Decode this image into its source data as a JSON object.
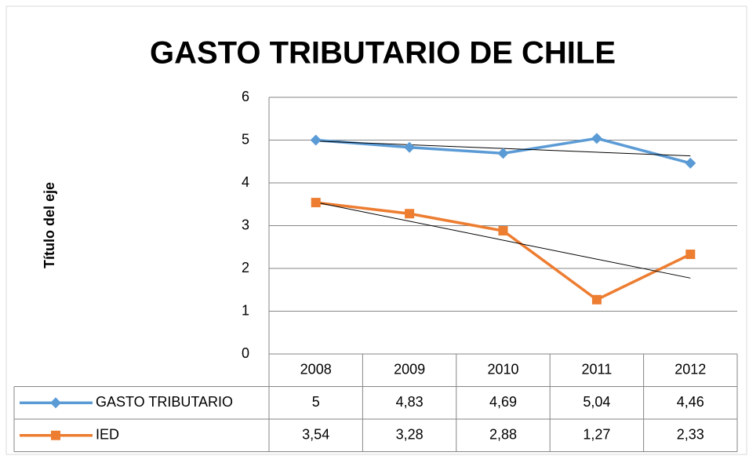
{
  "chart_data": {
    "type": "line",
    "title": "GASTO TRIBUTARIO DE CHILE",
    "y_label": "Título del eje",
    "categories": [
      "2008",
      "2009",
      "2010",
      "2011",
      "2012"
    ],
    "series": [
      {
        "name": "GASTO TRIBUTARIO",
        "color": "#5b9bd5",
        "marker": "diamond",
        "values": [
          5,
          4.83,
          4.69,
          5.04,
          4.46
        ],
        "value_labels": [
          "5",
          "4,83",
          "4,69",
          "5,04",
          "4,46"
        ]
      },
      {
        "name": "IED",
        "color": "#ed7d31",
        "marker": "square",
        "values": [
          3.54,
          3.28,
          2.88,
          1.27,
          2.33
        ],
        "value_labels": [
          "3,54",
          "3,28",
          "2,88",
          "1,27",
          "2,33"
        ]
      }
    ],
    "ylim": [
      0,
      6
    ],
    "yticks": [
      0,
      1,
      2,
      3,
      4,
      5,
      6
    ],
    "grid": true,
    "trendline": true,
    "data_table": true
  }
}
